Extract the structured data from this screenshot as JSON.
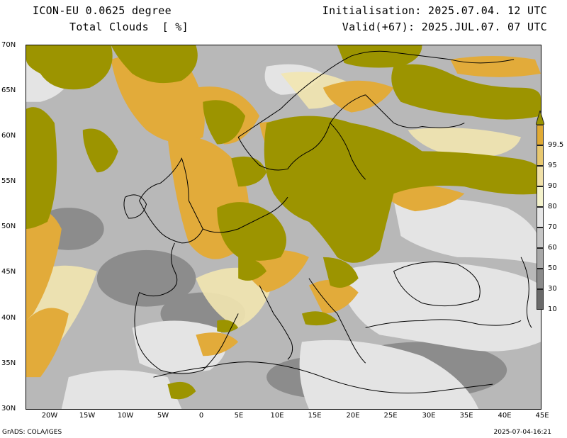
{
  "header": {
    "title_line1": "ICON-EU 0.0625 degree",
    "title_line2": "Total Clouds  [ %]",
    "init_line": "Initialisation: 2025.07.04. 12 UTC",
    "valid_line": "Valid(+67): 2025.JUL.07. 07 UTC"
  },
  "map": {
    "lat_labels": [
      "70N",
      "65N",
      "60N",
      "55N",
      "50N",
      "45N",
      "40N",
      "35N",
      "30N"
    ],
    "lon_labels": [
      "20W",
      "15W",
      "10W",
      "5W",
      "0",
      "5E",
      "10E",
      "15E",
      "20E",
      "25E",
      "30E",
      "35E",
      "40E",
      "45E"
    ],
    "lat_range": [
      30,
      70
    ],
    "lon_range": [
      -23,
      45
    ]
  },
  "colorbar": {
    "labels": [
      "99.5",
      "95",
      "90",
      "80",
      "70",
      "60",
      "50",
      "30",
      "10"
    ],
    "colors": [
      "#9a9400",
      "#e0aa34",
      "#e8c870",
      "#f0e0a8",
      "#f4f2cc",
      "#e6e6e6",
      "#c6c6c6",
      "#a8a8a8",
      "#8a8a8a",
      "#6a6a6a"
    ]
  },
  "footer": {
    "left": "GrADS: COLA/IGES",
    "right": "2025-07-04-16:21"
  }
}
